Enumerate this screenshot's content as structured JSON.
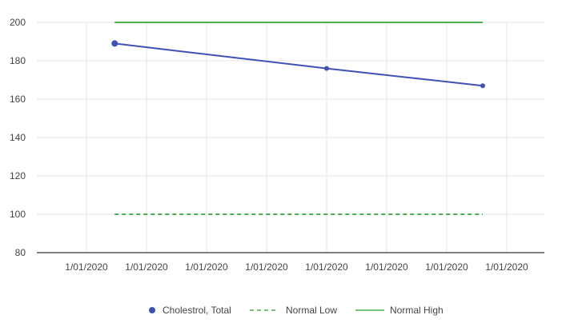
{
  "chart_data": {
    "type": "line",
    "title": "",
    "xlabel": "",
    "ylabel": "",
    "ylim": [
      80,
      200
    ],
    "y_ticks": [
      80,
      100,
      120,
      140,
      160,
      180,
      200
    ],
    "x_tick_labels": [
      "1/01/2020",
      "1/01/2020",
      "1/01/2020",
      "1/01/2020",
      "1/01/2020",
      "1/01/2020",
      "1/01/2020",
      "1/01/2020"
    ],
    "grid": true,
    "legend_position": "bottom",
    "series": [
      {
        "name": "Cholestrol, Total",
        "style": "line-with-markers",
        "color": "#3f51b5",
        "x": [
          1.47,
          5.0,
          7.6
        ],
        "y": [
          189,
          176,
          167
        ]
      },
      {
        "name": "Normal Low",
        "style": "dashed",
        "color": "#4caf50",
        "x": [
          1.47,
          7.6
        ],
        "y": [
          100,
          100
        ]
      },
      {
        "name": "Normal High",
        "style": "solid",
        "color": "#4caf50",
        "x": [
          1.47,
          7.6
        ],
        "y": [
          200,
          200
        ]
      }
    ]
  }
}
